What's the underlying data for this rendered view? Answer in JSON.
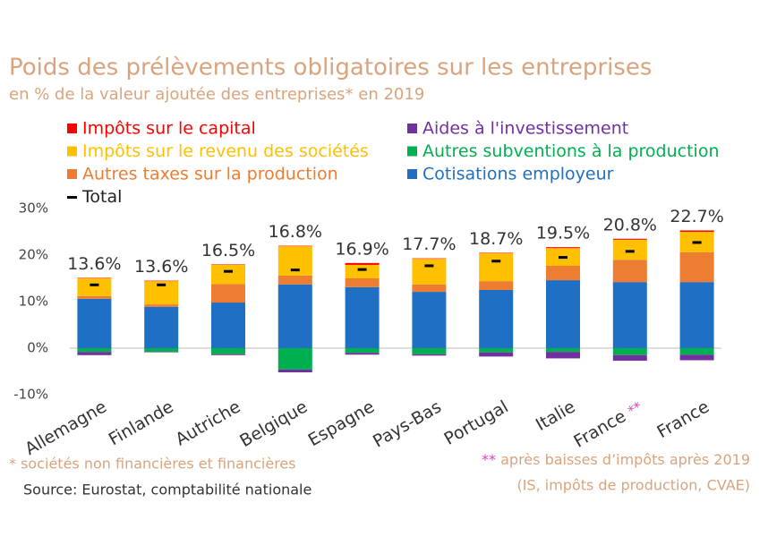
{
  "chart_data": {
    "type": "stacked_bar",
    "title": "Poids des prélèvements obligatoires sur les entreprises",
    "subtitle": "en % de la valeur ajoutée des entreprises* en 2019",
    "categories": [
      "Allemagne",
      "Finlande",
      "Autriche",
      "Belgique",
      "Espagne",
      "Pays-Bas",
      "Portugal",
      "Italie",
      {
        "label": "France",
        "mark": "**"
      },
      "France"
    ],
    "series": [
      {
        "name": "Impôts sur le capital",
        "color": "#ff0000",
        "values": [
          0.1,
          0.1,
          0.1,
          0.1,
          0.4,
          0.1,
          0.1,
          0.2,
          0.2,
          0.3
        ]
      },
      {
        "name": "Impôts sur le revenu des sociétés",
        "color": "#ffc000",
        "values": [
          3.8,
          5.0,
          4.1,
          6.3,
          2.9,
          5.5,
          6.0,
          3.8,
          4.3,
          4.4
        ]
      },
      {
        "name": "Autres taxes sur la production",
        "color": "#ed7d31",
        "values": [
          0.6,
          0.5,
          4.0,
          1.9,
          1.9,
          1.6,
          1.9,
          3.1,
          4.8,
          6.4
        ]
      },
      {
        "name": "Aides à l'investissement",
        "color": "#7030a0",
        "values": [
          -0.7,
          -0.1,
          -0.2,
          -0.6,
          -0.4,
          -0.3,
          -0.9,
          -1.4,
          -1.2,
          -1.2
        ]
      },
      {
        "name": "Autres subventions à la production",
        "color": "#00b050",
        "values": [
          -0.8,
          -0.8,
          -1.3,
          -4.6,
          -1.0,
          -1.3,
          -0.9,
          -0.8,
          -1.5,
          -1.4
        ]
      },
      {
        "name": "Cotisations employeur",
        "color": "#1f6fc5",
        "values": [
          10.6,
          8.9,
          9.8,
          13.7,
          13.1,
          12.1,
          12.5,
          14.6,
          14.2,
          14.2
        ]
      }
    ],
    "total": {
      "name": "Total",
      "color": "#000000",
      "values": [
        13.6,
        13.6,
        16.5,
        16.8,
        16.9,
        17.7,
        18.7,
        19.5,
        20.8,
        22.7
      ],
      "value_labels": [
        "13.6%",
        "13.6%",
        "16.5%",
        "16.8%",
        "16.9%",
        "17.7%",
        "18.7%",
        "19.5%",
        "20.8%",
        "22.7%"
      ]
    },
    "ylim": [
      -10,
      30
    ],
    "yticks": [
      {
        "value": -10,
        "label": "-10%"
      },
      {
        "value": 0,
        "label": "0%"
      },
      {
        "value": 10,
        "label": "10%"
      },
      {
        "value": 20,
        "label": "20%"
      },
      {
        "value": 30,
        "label": "30%"
      }
    ],
    "grid": false,
    "footnote": "* sociétés non financières et financières",
    "source": "Source: Eurostat, comptabilité nationale",
    "note": {
      "mark": "**",
      "lines": [
        "après baisses d’impôts après 2019",
        "(IS, impôts de production, CVAE)"
      ]
    }
  }
}
